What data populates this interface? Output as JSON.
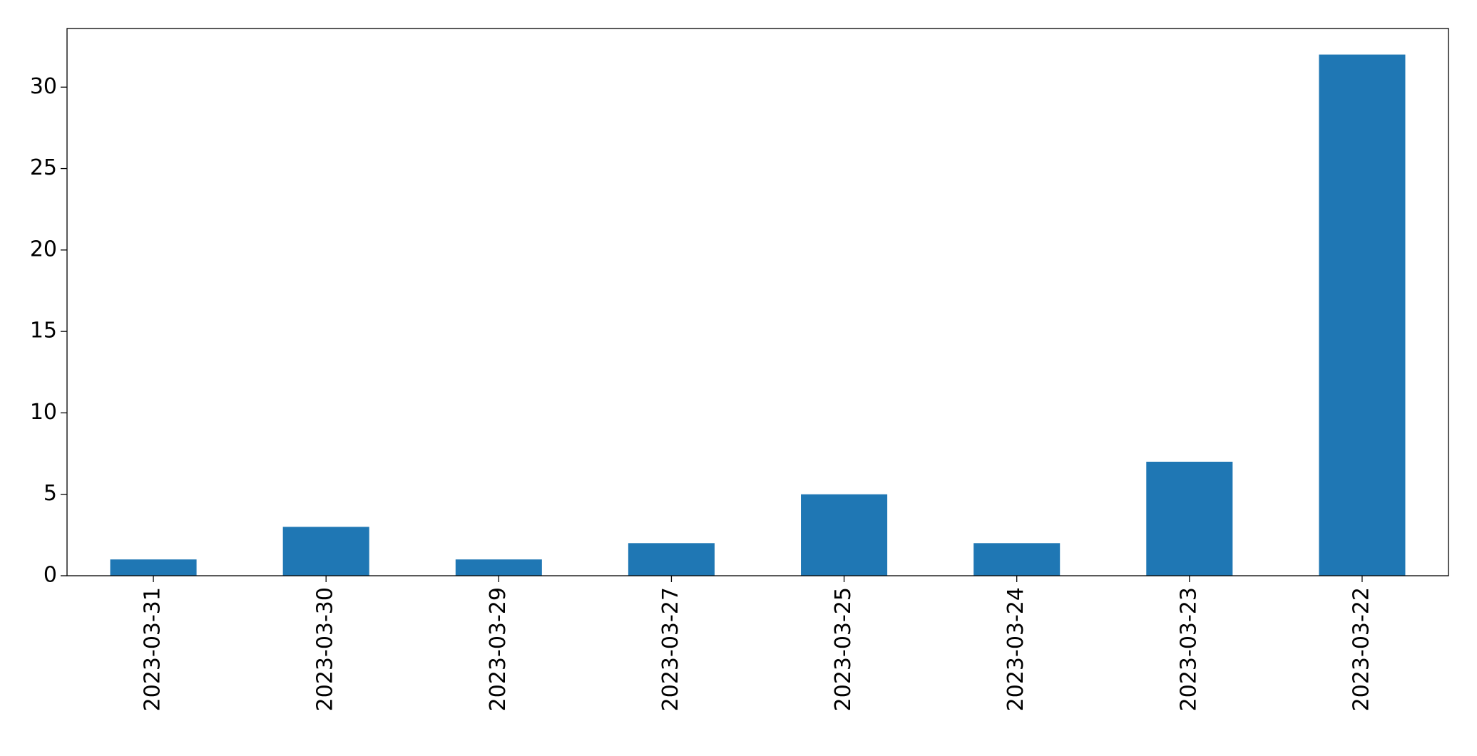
{
  "chart_data": {
    "type": "bar",
    "categories": [
      "2023-03-31",
      "2023-03-30",
      "2023-03-29",
      "2023-03-27",
      "2023-03-25",
      "2023-03-24",
      "2023-03-23",
      "2023-03-22"
    ],
    "values": [
      1,
      3,
      1,
      2,
      5,
      2,
      7,
      32
    ],
    "color": "#1f77b4",
    "ylim": [
      0,
      33.6
    ],
    "yticks": [
      0,
      5,
      10,
      15,
      20,
      25,
      30
    ],
    "grid": false
  }
}
